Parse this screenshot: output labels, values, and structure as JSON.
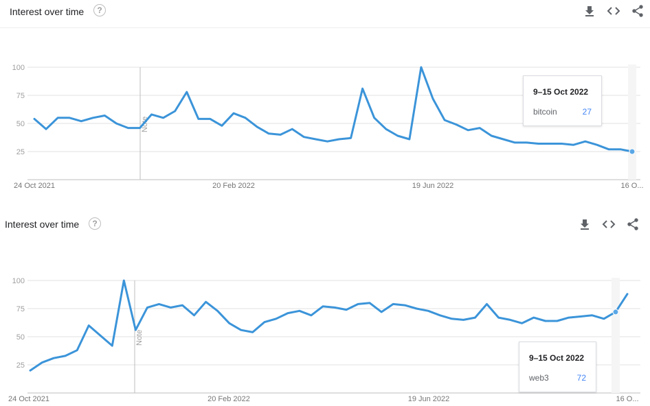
{
  "panels": [
    {
      "title": "Interest over time",
      "help_icon": "?",
      "tools": [
        "download-icon",
        "embed-icon",
        "share-icon"
      ],
      "tooltip": {
        "date": "9–15 Oct 2022",
        "term": "bitcoin",
        "value": "27"
      },
      "note_label": "Note"
    },
    {
      "title": "Interest over time",
      "help_icon": "?",
      "tools": [
        "download-icon",
        "embed-icon",
        "share-icon"
      ],
      "tooltip": {
        "date": "9–15 Oct 2022",
        "term": "web3",
        "value": "72"
      },
      "note_label": "Note"
    }
  ],
  "colors": {
    "line": "#3b94d9",
    "grid": "#e0e0e0",
    "axis": "#bdbdbd",
    "tick_text": "#9e9e9e",
    "accent": "#4285f4"
  },
  "chart_data": [
    {
      "type": "line",
      "title": "Interest over time",
      "series": [
        {
          "name": "bitcoin",
          "values": [
            54,
            45,
            55,
            55,
            52,
            55,
            57,
            50,
            46,
            46,
            58,
            55,
            61,
            78,
            54,
            54,
            48,
            59,
            55,
            47,
            41,
            40,
            45,
            38,
            36,
            34,
            36,
            37,
            81,
            55,
            45,
            39,
            36,
            100,
            72,
            53,
            49,
            44,
            46,
            39,
            36,
            33,
            33,
            32,
            32,
            32,
            31,
            34,
            31,
            27,
            27,
            25
          ]
        }
      ],
      "x_ticks": [
        "24 Oct 2021",
        "20 Feb 2022",
        "19 Jun 2022",
        "16 O..."
      ],
      "y_ticks": [
        25,
        50,
        75,
        100
      ],
      "ylim": [
        0,
        100
      ],
      "grid": true,
      "highlight_label": "9–15 Oct 2022"
    },
    {
      "type": "line",
      "title": "Interest over time",
      "series": [
        {
          "name": "web3",
          "values": [
            20,
            27,
            31,
            33,
            38,
            60,
            51,
            42,
            100,
            56,
            76,
            79,
            76,
            78,
            69,
            81,
            73,
            62,
            56,
            54,
            63,
            66,
            71,
            73,
            69,
            77,
            76,
            74,
            79,
            80,
            72,
            79,
            78,
            75,
            73,
            69,
            66,
            65,
            67,
            79,
            67,
            65,
            62,
            67,
            64,
            64,
            67,
            68,
            69,
            66,
            72,
            88
          ]
        }
      ],
      "x_ticks": [
        "24 Oct 2021",
        "20 Feb 2022",
        "19 Jun 2022",
        "16 O..."
      ],
      "y_ticks": [
        25,
        50,
        75,
        100
      ],
      "ylim": [
        0,
        100
      ],
      "grid": true,
      "highlight_label": "9–15 Oct 2022"
    }
  ]
}
